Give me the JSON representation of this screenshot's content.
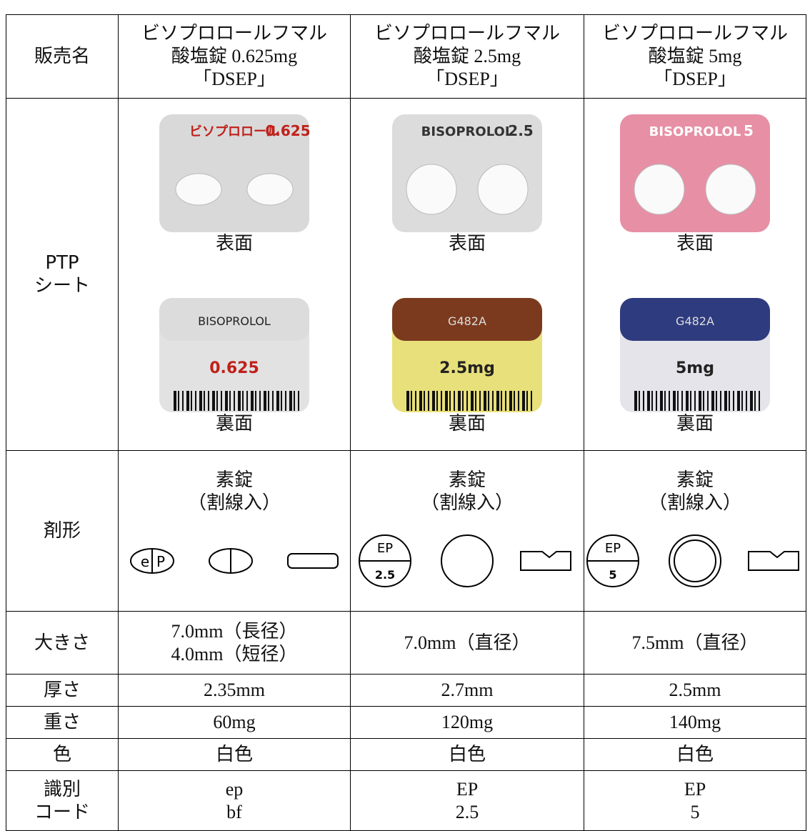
{
  "table": {
    "header": {
      "label": [
        "販売名"
      ],
      "cells": [
        [
          "ビソプロロールフマル",
          "酸塩錠 0.625mg",
          "「DSEP」"
        ],
        [
          "ビソプロロールフマル",
          "酸塩錠 2.5mg",
          "「DSEP」"
        ],
        [
          "ビソプロロールフマル",
          "酸塩錠 5mg",
          "「DSEP」"
        ]
      ]
    },
    "ptp": {
      "label": [
        "PTP",
        "シート"
      ],
      "cells": [
        {
          "front_text": [
            "ビソプロロール",
            "0.625"
          ],
          "front": "表面",
          "back_text": [
            "BISOPROLOL",
            "0.625"
          ],
          "back": "裏面"
        },
        {
          "front_text": [
            "BISOPROLOL",
            "2.5"
          ],
          "front": "表面",
          "back_text": [
            "G482A",
            "2.5mg"
          ],
          "back": "裏面"
        },
        {
          "front_text": [
            "BISOPROLOL",
            "5"
          ],
          "front": "表面",
          "back_text": [
            "G482A",
            "5mg"
          ],
          "back": "裏面"
        }
      ]
    },
    "form": {
      "label": [
        "剤形"
      ],
      "cells": [
        {
          "lines": [
            "素錠",
            "（割線入）"
          ],
          "imprint": [
            "e",
            "P"
          ]
        },
        {
          "lines": [
            "素錠",
            "（割線入）"
          ],
          "imprint": [
            "EP",
            "2.5"
          ]
        },
        {
          "lines": [
            "素錠",
            "（割線入）"
          ],
          "imprint": [
            "EP",
            "5"
          ]
        }
      ]
    },
    "rows": [
      {
        "label": [
          "大きさ"
        ],
        "cells": [
          [
            "7.0mm（長径）",
            "4.0mm（短径）"
          ],
          [
            "7.0mm（直径）"
          ],
          [
            "7.5mm（直径）"
          ]
        ]
      },
      {
        "label": [
          "厚さ"
        ],
        "cells": [
          [
            "2.35mm"
          ],
          [
            "2.7mm"
          ],
          [
            "2.5mm"
          ]
        ]
      },
      {
        "label": [
          "重さ"
        ],
        "cells": [
          [
            "60mg"
          ],
          [
            "120mg"
          ],
          [
            "140mg"
          ]
        ]
      },
      {
        "label": [
          "色"
        ],
        "cells": [
          [
            "白色"
          ],
          [
            "白色"
          ],
          [
            "白色"
          ]
        ]
      },
      {
        "label": [
          "識別",
          "コード"
        ],
        "cells": [
          [
            "ep",
            "bf"
          ],
          [
            "EP",
            "2.5"
          ],
          [
            "EP",
            "5"
          ]
        ]
      }
    ]
  }
}
